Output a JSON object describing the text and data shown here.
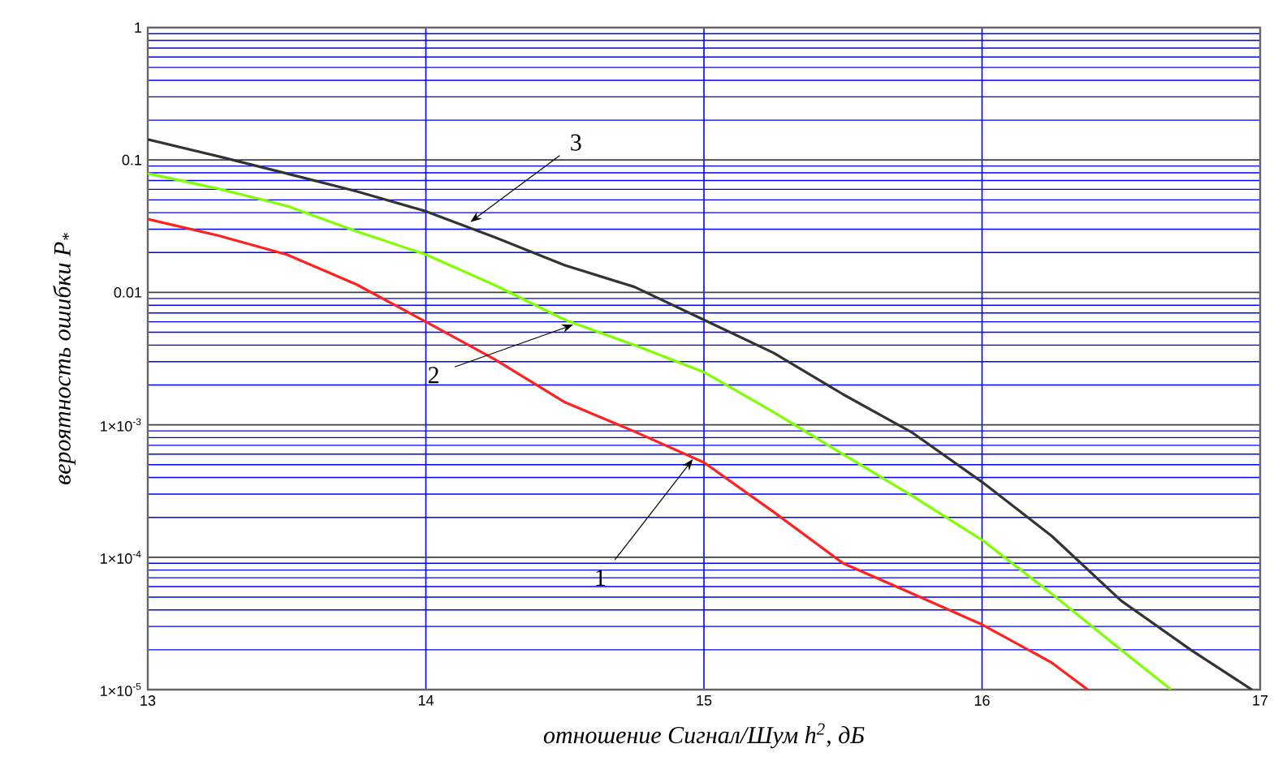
{
  "chart_data": {
    "type": "line",
    "xlabel": "отношение Сигнал/Шум h$^{2}$, дБ",
    "ylabel": "вероятность ошибки  P$_{*}$",
    "log": "y",
    "grid": true,
    "line_style": "solid",
    "marker": "none",
    "xlim": [
      13,
      17
    ],
    "ylim": [
      1e-05,
      1
    ],
    "xticks": [
      13,
      14,
      15,
      16,
      17
    ],
    "yticks": [
      {
        "value": 1e-05,
        "label": "1×10$^{-5}$"
      },
      {
        "value": 0.0001,
        "label": "1×10$^{-4}$"
      },
      {
        "value": 0.001,
        "label": "1×10$^{-3}$"
      },
      0.01,
      0.1,
      1
    ],
    "series": [
      {
        "color": "#ff2020",
        "x": [
          13,
          13.25,
          13.5,
          13.75,
          14,
          14.25,
          14.5,
          14.75,
          15,
          15.25,
          15.5,
          15.75,
          16,
          16.25,
          16.38
        ],
        "values": [
          0.0358,
          0.027,
          0.0193,
          0.0115,
          0.006,
          0.0031,
          0.00148,
          0.00089,
          0.00052,
          0.00022,
          9e-05,
          5.3e-05,
          3.1e-05,
          1.6e-05,
          1e-05
        ]
      },
      {
        "color": "#80ff00",
        "x": [
          13,
          13.25,
          13.5,
          13.75,
          14,
          14.25,
          14.5,
          14.75,
          15,
          15.25,
          15.5,
          15.75,
          16,
          16.25,
          16.5,
          16.68
        ],
        "values": [
          0.079,
          0.061,
          0.045,
          0.029,
          0.0193,
          0.0113,
          0.0062,
          0.004,
          0.0025,
          0.00125,
          0.0006,
          0.00029,
          0.000135,
          5.3e-05,
          2e-05,
          1e-05
        ]
      },
      {
        "color": "#333333",
        "x": [
          13,
          13.25,
          13.5,
          13.75,
          14,
          14.25,
          14.5,
          14.75,
          15,
          15.25,
          15.5,
          15.75,
          16,
          16.25,
          16.5,
          16.75,
          16.97
        ],
        "values": [
          0.143,
          0.107,
          0.079,
          0.058,
          0.041,
          0.026,
          0.016,
          0.011,
          0.0062,
          0.0035,
          0.0017,
          0.00087,
          0.00037,
          0.000145,
          4.7e-05,
          2e-05,
          1e-05
        ]
      }
    ],
    "annotations": [
      {
        "text": "1",
        "x": 14.96,
        "y": 0.00055
      },
      {
        "text": "2",
        "x": 14.53,
        "y": 0.0057
      },
      {
        "text": "3",
        "x": 14.16,
        "y": 0.034
      }
    ]
  }
}
